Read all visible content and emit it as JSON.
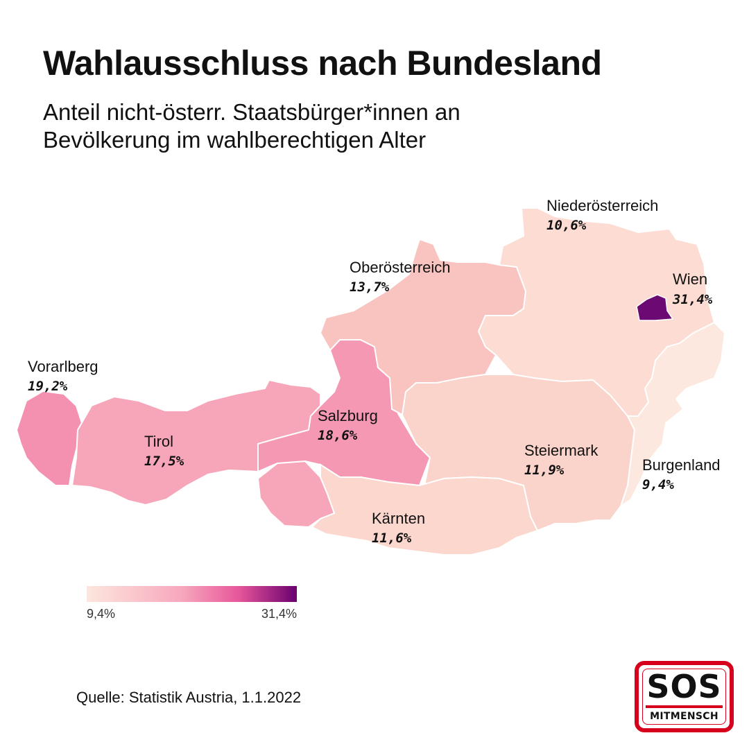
{
  "title": "Wahlausschluss nach Bundesland",
  "subtitle": "Anteil nicht-österr. Staatsbürger*innen an Bevölkerung im wahlberechtigen Alter",
  "regions": {
    "vorarlberg": {
      "name": "Vorarlberg",
      "value": "19,2%",
      "share": 19.2,
      "color": "#f491b0"
    },
    "tirol": {
      "name": "Tirol",
      "value": "17,5%",
      "share": 17.5,
      "color": "#f7a6b9"
    },
    "salzburg": {
      "name": "Salzburg",
      "value": "18,6%",
      "share": 18.6,
      "color": "#f598b4"
    },
    "oberoesterreich": {
      "name": "Oberösterreich",
      "value": "13,7%",
      "share": 13.7,
      "color": "#f9c3bf"
    },
    "niederoesterreich": {
      "name": "Niederösterreich",
      "value": "10,6%",
      "share": 10.6,
      "color": "#fcdcd3"
    },
    "wien": {
      "name": "Wien",
      "value": "31,4%",
      "share": 31.4,
      "color": "#6b0a72"
    },
    "steiermark": {
      "name": "Steiermark",
      "value": "11,9%",
      "share": 11.9,
      "color": "#fad3ca"
    },
    "kaernten": {
      "name": "Kärnten",
      "value": "11,6%",
      "share": 11.6,
      "color": "#fbd7ce"
    },
    "burgenland": {
      "name": "Burgenland",
      "value": "9,4%",
      "share": 9.4,
      "color": "#fde8df"
    }
  },
  "legend": {
    "min": "9,4%",
    "max": "31,4%"
  },
  "source": "Quelle: Statistik Austria, 1.1.2022",
  "logo": {
    "top": "SOS",
    "bottom": "MITMENSCH"
  }
}
